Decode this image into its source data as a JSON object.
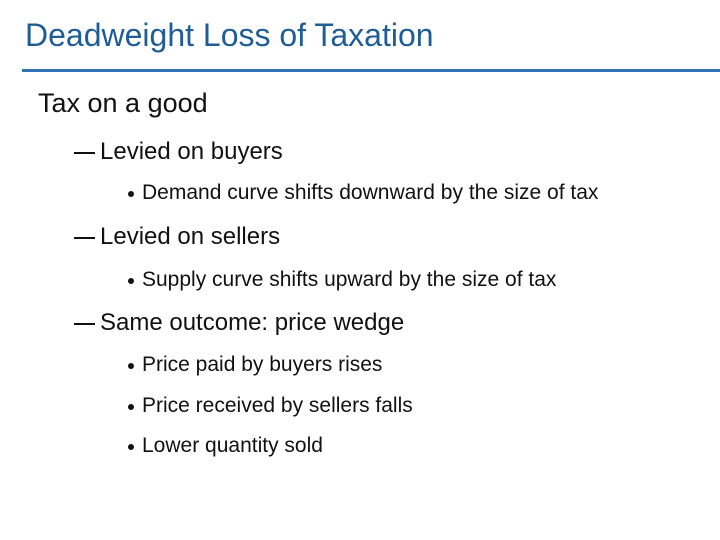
{
  "title": "Deadweight Loss of Taxation",
  "items": [
    {
      "text": "Tax on a good",
      "children": [
        {
          "text": "Levied on buyers",
          "children": [
            {
              "text": "Demand curve shifts downward by the size of tax"
            }
          ]
        },
        {
          "text": "Levied on sellers",
          "children": [
            {
              "text": "Supply curve shifts upward by the size of tax"
            }
          ]
        },
        {
          "text": "Same outcome: price wedge",
          "children": [
            {
              "text": "Price paid by buyers rises"
            },
            {
              "text": "Price received by sellers falls"
            },
            {
              "text": "Lower quantity sold"
            }
          ]
        }
      ]
    }
  ]
}
